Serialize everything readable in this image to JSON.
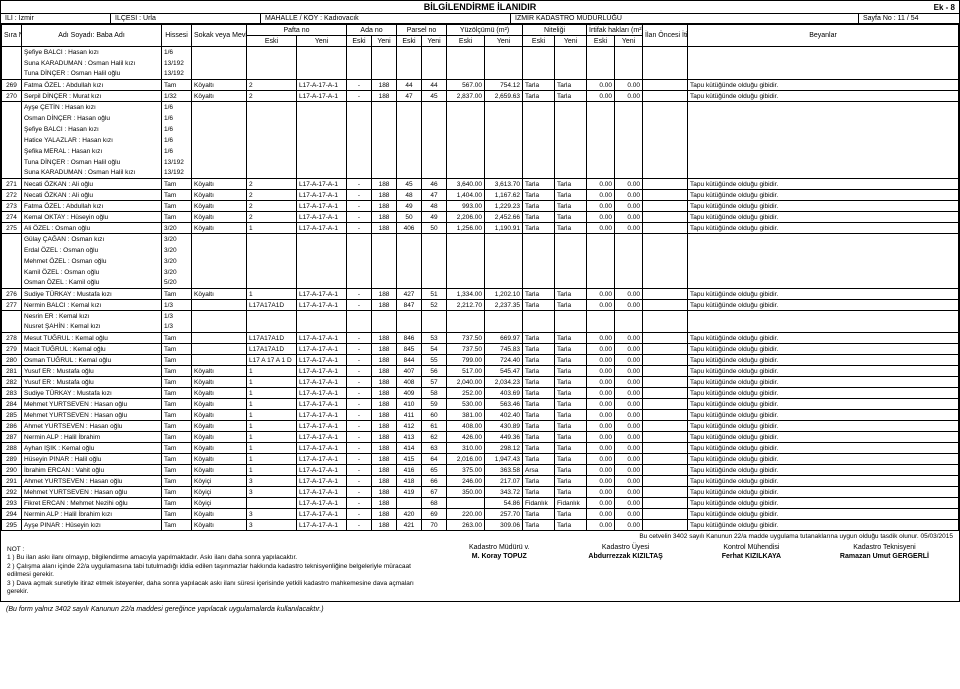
{
  "corner": "Ek - 8",
  "title": "BİLGİLENDİRME İLANIDIR",
  "header": {
    "il_label": "İLİ :",
    "il": "İzmir",
    "ilce_label": "İLÇESİ :",
    "ilce": "Urla",
    "mahalle_label": "MAHALLE / KÖY :",
    "mahalle": "Kadıovacık",
    "mudur": "İZMİR KADASTRO MÜDÜRLÜĞÜ",
    "sayfa_label": "Sayfa No :",
    "sayfa": "11 / 54"
  },
  "cols": {
    "sira": "Sıra No",
    "adi": "Adı Soyadı: Baba Adı",
    "hisse": "Hissesi",
    "mevki": "Sokak veya Mevki",
    "pafta": "Pafta no",
    "ada": "Ada no",
    "parsel": "Parsel no",
    "yuz": "Yüzölçümü (m²)",
    "nitelik": "Niteliği",
    "irtifak": "İrtifak hakları (m²)",
    "ilan": "İlan Öncesi İtiraz Sonuçları",
    "beyan": "Beyanlar",
    "eski": "Eski",
    "yeni": "Yeni"
  },
  "pre_rows": [
    {
      "adi": "Şefiye BALCI : Hasan kızı",
      "h": "1/6"
    },
    {
      "adi": "Suna KARADUMAN : Osman Halil kızı",
      "h": "13/192"
    },
    {
      "adi": "Tuna DİNÇER : Osman Halil oğlu",
      "h": "13/192"
    }
  ],
  "rows": [
    {
      "n": "269",
      "adi": "Fatma ÖZEL : Abdullah kızı",
      "h": "Tam",
      "m": "Köyaltı",
      "pe": "2",
      "ay": "L17-A-17-A-1",
      "ae": "-",
      "py": "188",
      "pye": "44",
      "ye": "44",
      "yy": "567.00",
      "ne": "754.12",
      "ny": "Tarla",
      "ie": "Tarla",
      "iy": "0.00",
      "il": "0.00",
      "b": "Tapu kütüğünde olduğu gibidir."
    },
    {
      "n": "270",
      "adi": "Serpil DİNÇER : Murat kızı",
      "h": "1/32",
      "m": "Köyaltı",
      "pe": "2",
      "ay": "L17-A-17-A-1",
      "ae": "-",
      "py": "188",
      "pye": "47",
      "ye": "45",
      "yy": "2,837.00",
      "ne": "2,659.63",
      "ny": "Tarla",
      "ie": "Tarla",
      "iy": "0.00",
      "il": "0.00",
      "b": "Tapu kütüğünde olduğu gibidir.",
      "subs": [
        {
          "adi": "Ayşe ÇETİN : Hasan kızı",
          "h": "1/6"
        },
        {
          "adi": "Osman DİNÇER : Hasan oğlu",
          "h": "1/6"
        },
        {
          "adi": "Şefiye BALCI : Hasan kızı",
          "h": "1/6"
        },
        {
          "adi": "Hatice YALAZLAR : Hasan kızı",
          "h": "1/6"
        },
        {
          "adi": "Şefika MERAL : Hasan kızı",
          "h": "1/6"
        },
        {
          "adi": "Tuna DİNÇER : Osman Halil oğlu",
          "h": "13/192"
        },
        {
          "adi": "Suna KARADUMAN : Osman Halil kızı",
          "h": "13/192"
        }
      ]
    },
    {
      "n": "271",
      "adi": "Necati ÖZKAN : Ali oğlu",
      "h": "Tam",
      "m": "Köyaltı",
      "pe": "2",
      "ay": "L17-A-17-A-1",
      "ae": "-",
      "py": "188",
      "pye": "45",
      "ye": "46",
      "yy": "3,640.00",
      "ne": "3,613.70",
      "ny": "Tarla",
      "ie": "Tarla",
      "iy": "0.00",
      "il": "0.00",
      "b": "Tapu kütüğünde olduğu gibidir."
    },
    {
      "n": "272",
      "adi": "Necati ÖZKAN : Ali oğlu",
      "h": "Tam",
      "m": "Köyaltı",
      "pe": "2",
      "ay": "L17-A-17-A-1",
      "ae": "-",
      "py": "188",
      "pye": "48",
      "ye": "47",
      "yy": "1,404.00",
      "ne": "1,167.62",
      "ny": "Tarla",
      "ie": "Tarla",
      "iy": "0.00",
      "il": "0.00",
      "b": "Tapu kütüğünde olduğu gibidir."
    },
    {
      "n": "273",
      "adi": "Fatma ÖZEL : Abdullah kızı",
      "h": "Tam",
      "m": "Köyaltı",
      "pe": "2",
      "ay": "L17-A-17-A-1",
      "ae": "-",
      "py": "188",
      "pye": "49",
      "ye": "48",
      "yy": "993.00",
      "ne": "1,229.23",
      "ny": "Tarla",
      "ie": "Tarla",
      "iy": "0.00",
      "il": "0.00",
      "b": "Tapu kütüğünde olduğu gibidir."
    },
    {
      "n": "274",
      "adi": "Kemal OKTAY : Hüseyin oğlu",
      "h": "Tam",
      "m": "Köyaltı",
      "pe": "2",
      "ay": "L17-A-17-A-1",
      "ae": "-",
      "py": "188",
      "pye": "50",
      "ye": "49",
      "yy": "2,206.00",
      "ne": "2,452.66",
      "ny": "Tarla",
      "ie": "Tarla",
      "iy": "0.00",
      "il": "0.00",
      "b": "Tapu kütüğünde olduğu gibidir."
    },
    {
      "n": "275",
      "adi": "Ali ÖZEL : Osman oğlu",
      "h": "3/20",
      "m": "Köyaltı",
      "pe": "1",
      "ay": "L17-A-17-A-1",
      "ae": "-",
      "py": "188",
      "pye": "406",
      "ye": "50",
      "yy": "1,256.00",
      "ne": "1,190.91",
      "ny": "Tarla",
      "ie": "Tarla",
      "iy": "0.00",
      "il": "0.00",
      "b": "Tapu kütüğünde olduğu gibidir.",
      "subs": [
        {
          "adi": "Gülay ÇAĞAN : Osman kızı",
          "h": "3/20"
        },
        {
          "adi": "Erdal ÖZEL : Osman oğlu",
          "h": "3/20"
        },
        {
          "adi": "Mehmet ÖZEL : Osman oğlu",
          "h": "3/20"
        },
        {
          "adi": "Kamil ÖZEL : Osman oğlu",
          "h": "3/20"
        },
        {
          "adi": "Osman ÖZEL : Kamil oğlu",
          "h": "5/20"
        }
      ]
    },
    {
      "n": "276",
      "adi": "Sudiye TÜRKAY : Mustafa kızı",
      "h": "Tam",
      "m": "Köyaltı",
      "pe": "1",
      "ay": "L17-A-17-A-1",
      "ae": "-",
      "py": "188",
      "pye": "427",
      "ye": "51",
      "yy": "1,334.00",
      "ne": "1,202.10",
      "ny": "Tarla",
      "ie": "Tarla",
      "iy": "0.00",
      "il": "0.00",
      "b": "Tapu kütüğünde olduğu gibidir."
    },
    {
      "n": "277",
      "adi": "Nermin BALCI : Kemal kızı",
      "h": "1/3",
      "m": "",
      "pe": "L17A17A1D",
      "ay": "L17-A-17-A-1",
      "ae": "-",
      "py": "188",
      "pye": "847",
      "ye": "52",
      "yy": "2,212.70",
      "ne": "2,237.35",
      "ny": "Tarla",
      "ie": "Tarla",
      "iy": "0.00",
      "il": "0.00",
      "b": "Tapu kütüğünde olduğu gibidir.",
      "subs": [
        {
          "adi": "Nesrin ER : Kemal kızı",
          "h": "1/3"
        },
        {
          "adi": "Nusret ŞAHİN : Kemal kızı",
          "h": "1/3"
        }
      ]
    },
    {
      "n": "278",
      "adi": "Mesut TUĞRUL : Kemal oğlu",
      "h": "Tam",
      "m": "",
      "pe": "L17A17A1D",
      "ay": "L17-A-17-A-1",
      "ae": "-",
      "py": "188",
      "pye": "846",
      "ye": "53",
      "yy": "737.50",
      "ne": "669.97",
      "ny": "Tarla",
      "ie": "Tarla",
      "iy": "0.00",
      "il": "0.00",
      "b": "Tapu kütüğünde olduğu gibidir."
    },
    {
      "n": "279",
      "adi": "Macit TUĞRUL : Kemal oğlu",
      "h": "Tam",
      "m": "",
      "pe": "L17A17A1D",
      "ay": "L17-A-17-A-1",
      "ae": "-",
      "py": "188",
      "pye": "845",
      "ye": "54",
      "yy": "737.50",
      "ne": "745.83",
      "ny": "Tarla",
      "ie": "Tarla",
      "iy": "0.00",
      "il": "0.00",
      "b": "Tapu kütüğünde olduğu gibidir."
    },
    {
      "n": "280",
      "adi": "Osman TUĞRUL : Kemal oğlu",
      "h": "Tam",
      "m": "",
      "pe": "L17 A 17 A 1 D",
      "ay": "L17-A-17-A-1",
      "ae": "-",
      "py": "188",
      "pye": "844",
      "ye": "55",
      "yy": "799.00",
      "ne": "724.40",
      "ny": "Tarla",
      "ie": "Tarla",
      "iy": "0.00",
      "il": "0.00",
      "b": "Tapu kütüğünde olduğu gibidir."
    },
    {
      "n": "281",
      "adi": "Yusuf ER : Mustafa oğlu",
      "h": "Tam",
      "m": "Köyaltı",
      "pe": "1",
      "ay": "L17-A-17-A-1",
      "ae": "-",
      "py": "188",
      "pye": "407",
      "ye": "56",
      "yy": "517.00",
      "ne": "545.47",
      "ny": "Tarla",
      "ie": "Tarla",
      "iy": "0.00",
      "il": "0.00",
      "b": "Tapu kütüğünde olduğu gibidir."
    },
    {
      "n": "282",
      "adi": "Yusuf ER : Mustafa oğlu",
      "h": "Tam",
      "m": "Köyaltı",
      "pe": "1",
      "ay": "L17-A-17-A-1",
      "ae": "-",
      "py": "188",
      "pye": "408",
      "ye": "57",
      "yy": "2,040.00",
      "ne": "2,034.23",
      "ny": "Tarla",
      "ie": "Tarla",
      "iy": "0.00",
      "il": "0.00",
      "b": "Tapu kütüğünde olduğu gibidir."
    },
    {
      "n": "283",
      "adi": "Sudiye TÜRKAY : Mustafa kızı",
      "h": "Tam",
      "m": "Köyaltı",
      "pe": "1",
      "ay": "L17-A-17-A-1",
      "ae": "-",
      "py": "188",
      "pye": "409",
      "ye": "58",
      "yy": "252.00",
      "ne": "403.69",
      "ny": "Tarla",
      "ie": "Tarla",
      "iy": "0.00",
      "il": "0.00",
      "b": "Tapu kütüğünde olduğu gibidir."
    },
    {
      "n": "284",
      "adi": "Mehmet YURTSEVEN : Hasan oğlu",
      "h": "Tam",
      "m": "Köyaltı",
      "pe": "1",
      "ay": "L17-A-17-A-1",
      "ae": "-",
      "py": "188",
      "pye": "410",
      "ye": "59",
      "yy": "530.00",
      "ne": "563.46",
      "ny": "Tarla",
      "ie": "Tarla",
      "iy": "0.00",
      "il": "0.00",
      "b": "Tapu kütüğünde olduğu gibidir."
    },
    {
      "n": "285",
      "adi": "Mehmet YURTSEVEN : Hasan oğlu",
      "h": "Tam",
      "m": "Köyaltı",
      "pe": "1",
      "ay": "L17-A-17-A-1",
      "ae": "-",
      "py": "188",
      "pye": "411",
      "ye": "60",
      "yy": "381.00",
      "ne": "402.40",
      "ny": "Tarla",
      "ie": "Tarla",
      "iy": "0.00",
      "il": "0.00",
      "b": "Tapu kütüğünde olduğu gibidir."
    },
    {
      "n": "286",
      "adi": "Ahmet YURTSEVEN : Hasan oğlu",
      "h": "Tam",
      "m": "Köyaltı",
      "pe": "1",
      "ay": "L17-A-17-A-1",
      "ae": "-",
      "py": "188",
      "pye": "412",
      "ye": "61",
      "yy": "408.00",
      "ne": "430.89",
      "ny": "Tarla",
      "ie": "Tarla",
      "iy": "0.00",
      "il": "0.00",
      "b": "Tapu kütüğünde olduğu gibidir."
    },
    {
      "n": "287",
      "adi": "Nermin ALP : Halil İbrahim",
      "h": "Tam",
      "m": "Köyaltı",
      "pe": "1",
      "ay": "L17-A-17-A-1",
      "ae": "-",
      "py": "188",
      "pye": "413",
      "ye": "62",
      "yy": "426.00",
      "ne": "449.36",
      "ny": "Tarla",
      "ie": "Tarla",
      "iy": "0.00",
      "il": "0.00",
      "b": "Tapu kütüğünde olduğu gibidir."
    },
    {
      "n": "288",
      "adi": "Ayhan IŞIK : Kemal oğlu",
      "h": "Tam",
      "m": "Köyaltı",
      "pe": "1",
      "ay": "L17-A-17-A-1",
      "ae": "-",
      "py": "188",
      "pye": "414",
      "ye": "63",
      "yy": "310.00",
      "ne": "298.12",
      "ny": "Tarla",
      "ie": "Tarla",
      "iy": "0.00",
      "il": "0.00",
      "b": "Tapu kütüğünde olduğu gibidir."
    },
    {
      "n": "289",
      "adi": "Hüseyin PINAR : Halil oğlu",
      "h": "Tam",
      "m": "Köyaltı",
      "pe": "1",
      "ay": "L17-A-17-A-1",
      "ae": "-",
      "py": "188",
      "pye": "415",
      "ye": "64",
      "yy": "2,016.00",
      "ne": "1,947.43",
      "ny": "Tarla",
      "ie": "Tarla",
      "iy": "0.00",
      "il": "0.00",
      "b": "Tapu kütüğünde olduğu gibidir."
    },
    {
      "n": "290",
      "adi": "İbrahim ERCAN : Vahit oğlu",
      "h": "Tam",
      "m": "Köyaltı",
      "pe": "1",
      "ay": "L17-A-17-A-1",
      "ae": "-",
      "py": "188",
      "pye": "416",
      "ye": "65",
      "yy": "375.00",
      "ne": "363.58",
      "ny": "Arsa",
      "ie": "Tarla",
      "iy": "0.00",
      "il": "0.00",
      "b": "Tapu kütüğünde olduğu gibidir."
    },
    {
      "n": "291",
      "adi": "Ahmet YURTSEVEN : Hasan oğlu",
      "h": "Tam",
      "m": "Köyiçi",
      "pe": "3",
      "ay": "L17-A-17-A-1",
      "ae": "-",
      "py": "188",
      "pye": "418",
      "ye": "66",
      "yy": "246.00",
      "ne": "217.07",
      "ny": "Tarla",
      "ie": "Tarla",
      "iy": "0.00",
      "il": "0.00",
      "b": "Tapu kütüğünde olduğu gibidir."
    },
    {
      "n": "292",
      "adi": "Mehmet YURTSEVEN : Hasan oğlu",
      "h": "Tam",
      "m": "Köyiçi",
      "pe": "3",
      "ay": "L17-A-17-A-1",
      "ae": "-",
      "py": "188",
      "pye": "419",
      "ye": "67",
      "yy": "350.00",
      "ne": "343.72",
      "ny": "Tarla",
      "ie": "Tarla",
      "iy": "0.00",
      "il": "0.00",
      "b": "Tapu kütüğünde olduğu gibidir."
    },
    {
      "n": "293",
      "adi": "Fikret ERCAN : Mehmet Nezihi oğlu",
      "h": "Tam",
      "m": "Köyiçi",
      "pe": "",
      "ay": "L17-A-17-A-1",
      "ae": "-",
      "py": "188",
      "pye": "",
      "ye": "68",
      "yy": "",
      "ne": "54.86",
      "ny": "Fidanlık",
      "ie": "Fidanlık",
      "iy": "0.00",
      "il": "0.00",
      "b": "Tapu kütüğünde olduğu gibidir."
    },
    {
      "n": "294",
      "adi": "Nermin ALP : Halil İbrahim kızı",
      "h": "Tam",
      "m": "Köyaltı",
      "pe": "3",
      "ay": "L17-A-17-A-1",
      "ae": "-",
      "py": "188",
      "pye": "420",
      "ye": "69",
      "yy": "220.00",
      "ne": "257.70",
      "ny": "Tarla",
      "ie": "Tarla",
      "iy": "0.00",
      "il": "0.00",
      "b": "Tapu kütüğünde olduğu gibidir."
    },
    {
      "n": "295",
      "adi": "Ayşe PINAR : Hüseyin kızı",
      "h": "Tam",
      "m": "Köyaltı",
      "pe": "3",
      "ay": "L17-A-17-A-1",
      "ae": "-",
      "py": "188",
      "pye": "421",
      "ye": "70",
      "yy": "263.00",
      "ne": "309.06",
      "ny": "Tarla",
      "ie": "Tarla",
      "iy": "0.00",
      "il": "0.00",
      "b": "Tapu kütüğünde olduğu gibidir."
    }
  ],
  "cetvel": "Bu cetvelin 3402 sayılı Kanunun 22/a madde uygulama tutanaklarına uygun olduğu tasdik olunur. 05/03/2015",
  "notes": {
    "l0": "NOT :",
    "l1": "1 ) Bu ilan askı ilanı olmayıp, bilgilendirme amacıyla yapılmaktadır. Askı ilanı daha sonra yapılacaktır.",
    "l2": "2 ) Çalışma alanı içinde 22/a uygulamasına tabi tutulmadığı iddia edilen taşınmazlar hakkında kadastro teknisyenliğine belgeleriyle müracaat edilmesi gerekir.",
    "l3": "3 ) Dava açmak suretiyle itiraz etmek isteyenler, daha sonra yapılacak askı ilanı süresi içerisinde yetkili kadastro mahkemesine dava açmaları gerekir."
  },
  "sig": {
    "t1": "Kadastro Müdürü v.",
    "n1": "M. Koray TOPUZ",
    "t2": "Kadastro Üyesi",
    "n2": "Abdurrezzak KIZILTAŞ",
    "t3": "Kontrol Mühendisi",
    "n3": "Ferhat KIZILKAYA",
    "t4": "Kadastro Teknisyeni",
    "n4": "Ramazan Umut GERGERLİ"
  },
  "footer": "(Bu form yalnız 3402 sayılı Kanunun 22/a maddesi gereğince yapılacak uygulamalarda kullanılacaktır.)"
}
